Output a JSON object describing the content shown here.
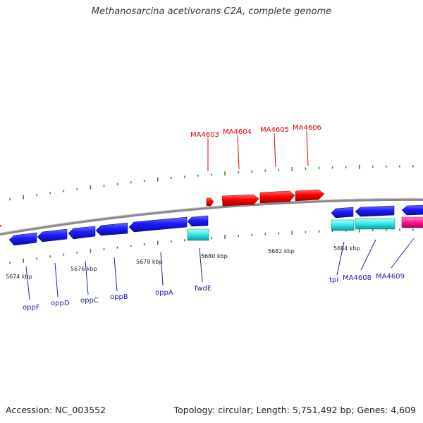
{
  "title": "Methanosarcina acetivorans C2A, complete genome",
  "footer": {
    "accession": "Accession: NC_003552",
    "summary": "Topology: circular; Length: 5,751,492 bp; Genes: 4,609"
  },
  "colors": {
    "backbone": "#8a8a8a",
    "tick": "#2e8b2e",
    "red": "#ff0000",
    "label_red": "#dd0000",
    "label_blue": "#2020aa",
    "blue": "#1c1cff",
    "cyan": "#33e6e6",
    "magenta": "#ff1493"
  },
  "scale_labels": [
    "5674 kbp",
    "5676 kbp",
    "5678 kbp",
    "5680 kbp",
    "5682 kbp",
    "5684 kbp"
  ],
  "upper_labels": [
    "MA4603",
    "MA4604",
    "MA4605",
    "MA4606"
  ],
  "lower_labels": [
    "oppF",
    "oppD",
    "oppC",
    "oppB",
    "oppA",
    "fwdE",
    "tpi",
    "MA4608",
    "MA4609"
  ]
}
